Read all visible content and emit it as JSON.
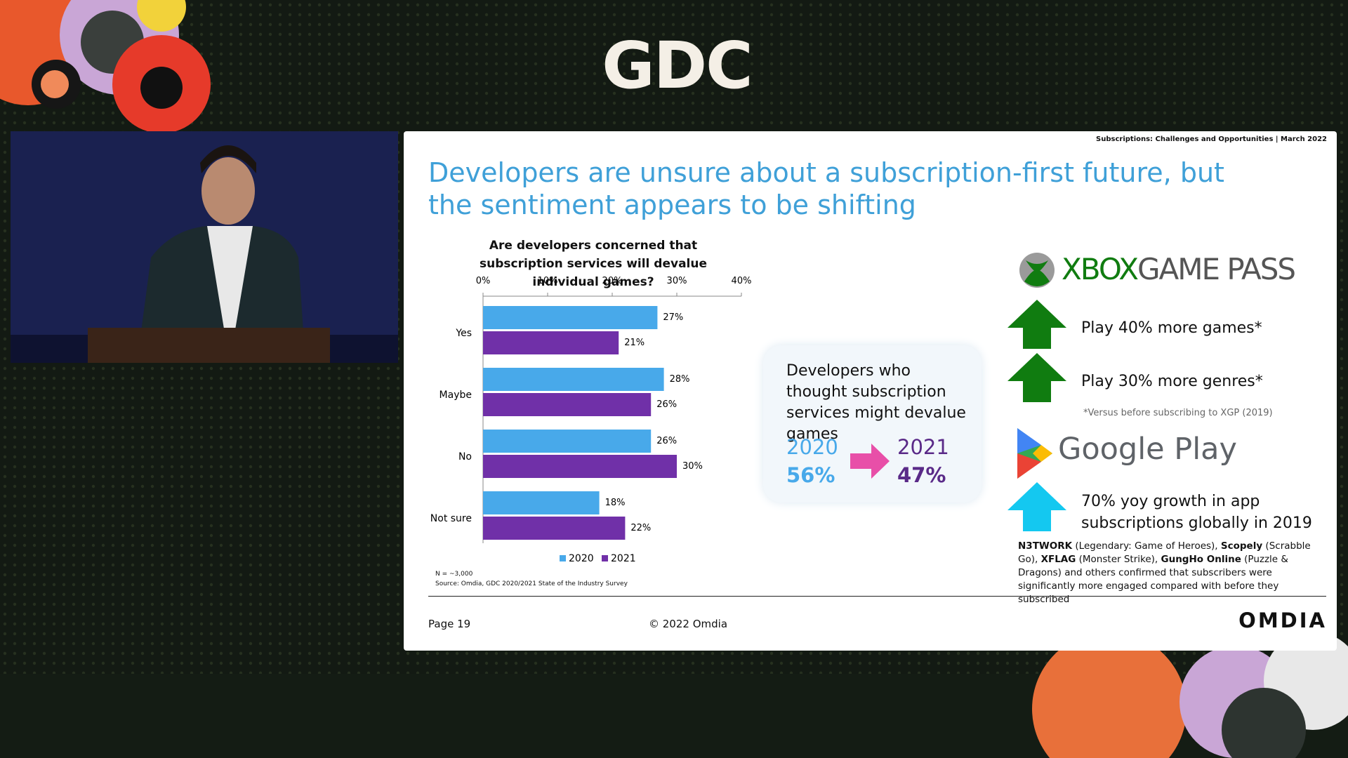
{
  "header": {
    "logo": "GDC"
  },
  "slide": {
    "tagline": "Subscriptions: Challenges and Opportunities | March 2022",
    "title": "Developers are unsure about a subscription-first future, but the sentiment appears to be shifting",
    "sample_note": "N = ~3,000",
    "source": "Source: Omdia, GDC 2020/2021 State of the Industry Survey",
    "callout": {
      "text": "Developers who thought subscription services might devalue games",
      "from_year": "2020",
      "from_value": "56%",
      "to_year": "2021",
      "to_value": "47%"
    },
    "xbox": {
      "logo_words": [
        "XBOX",
        "GAME PASS"
      ],
      "points": [
        "Play 40% more games*",
        "Play 30% more genres*"
      ],
      "footnote": "*Versus before subscribing to XGP (2019)"
    },
    "google": {
      "logo": "Google Play",
      "point": "70% yoy growth in app subscriptions globally in 2019",
      "note_parts": [
        {
          "text": "N3TWORK",
          "bold": true
        },
        {
          "text": " (Legendary: Game of Heroes), ",
          "bold": false
        },
        {
          "text": "Scopely",
          "bold": true
        },
        {
          "text": " (Scrabble Go), ",
          "bold": false
        },
        {
          "text": "XFLAG",
          "bold": true
        },
        {
          "text": " (Monster Strike), ",
          "bold": false
        },
        {
          "text": "GungHo Online",
          "bold": true
        },
        {
          "text": " (Puzzle & Dragons) and others confirmed that subscribers were significantly more engaged compared with before they subscribed",
          "bold": false
        }
      ]
    },
    "footer": {
      "page": "Page 19",
      "copyright": "© 2022 Omdia",
      "brand": "OMDIA"
    }
  },
  "chart_data": {
    "type": "bar",
    "orientation": "horizontal",
    "title": "Are developers concerned that subscription services will devalue individual games?",
    "categories": [
      "Yes",
      "Maybe",
      "No",
      "Not sure"
    ],
    "series": [
      {
        "name": "2020",
        "color": "#48a9ea",
        "values": [
          27,
          28,
          26,
          18
        ],
        "value_labels": [
          "27%",
          "28%",
          "26%",
          "18%"
        ]
      },
      {
        "name": "2021",
        "color": "#7030a8",
        "values": [
          21,
          26,
          30,
          22
        ],
        "value_labels": [
          "21%",
          "26%",
          "30%",
          "22%"
        ]
      }
    ],
    "xlim": [
      0,
      40
    ],
    "xticks": [
      {
        "value": 0,
        "label": "0%"
      },
      {
        "value": 10,
        "label": "10%"
      },
      {
        "value": 20,
        "label": "20%"
      },
      {
        "value": 30,
        "label": "30%"
      },
      {
        "value": 40,
        "label": "40%"
      }
    ],
    "legend": "bottom"
  }
}
